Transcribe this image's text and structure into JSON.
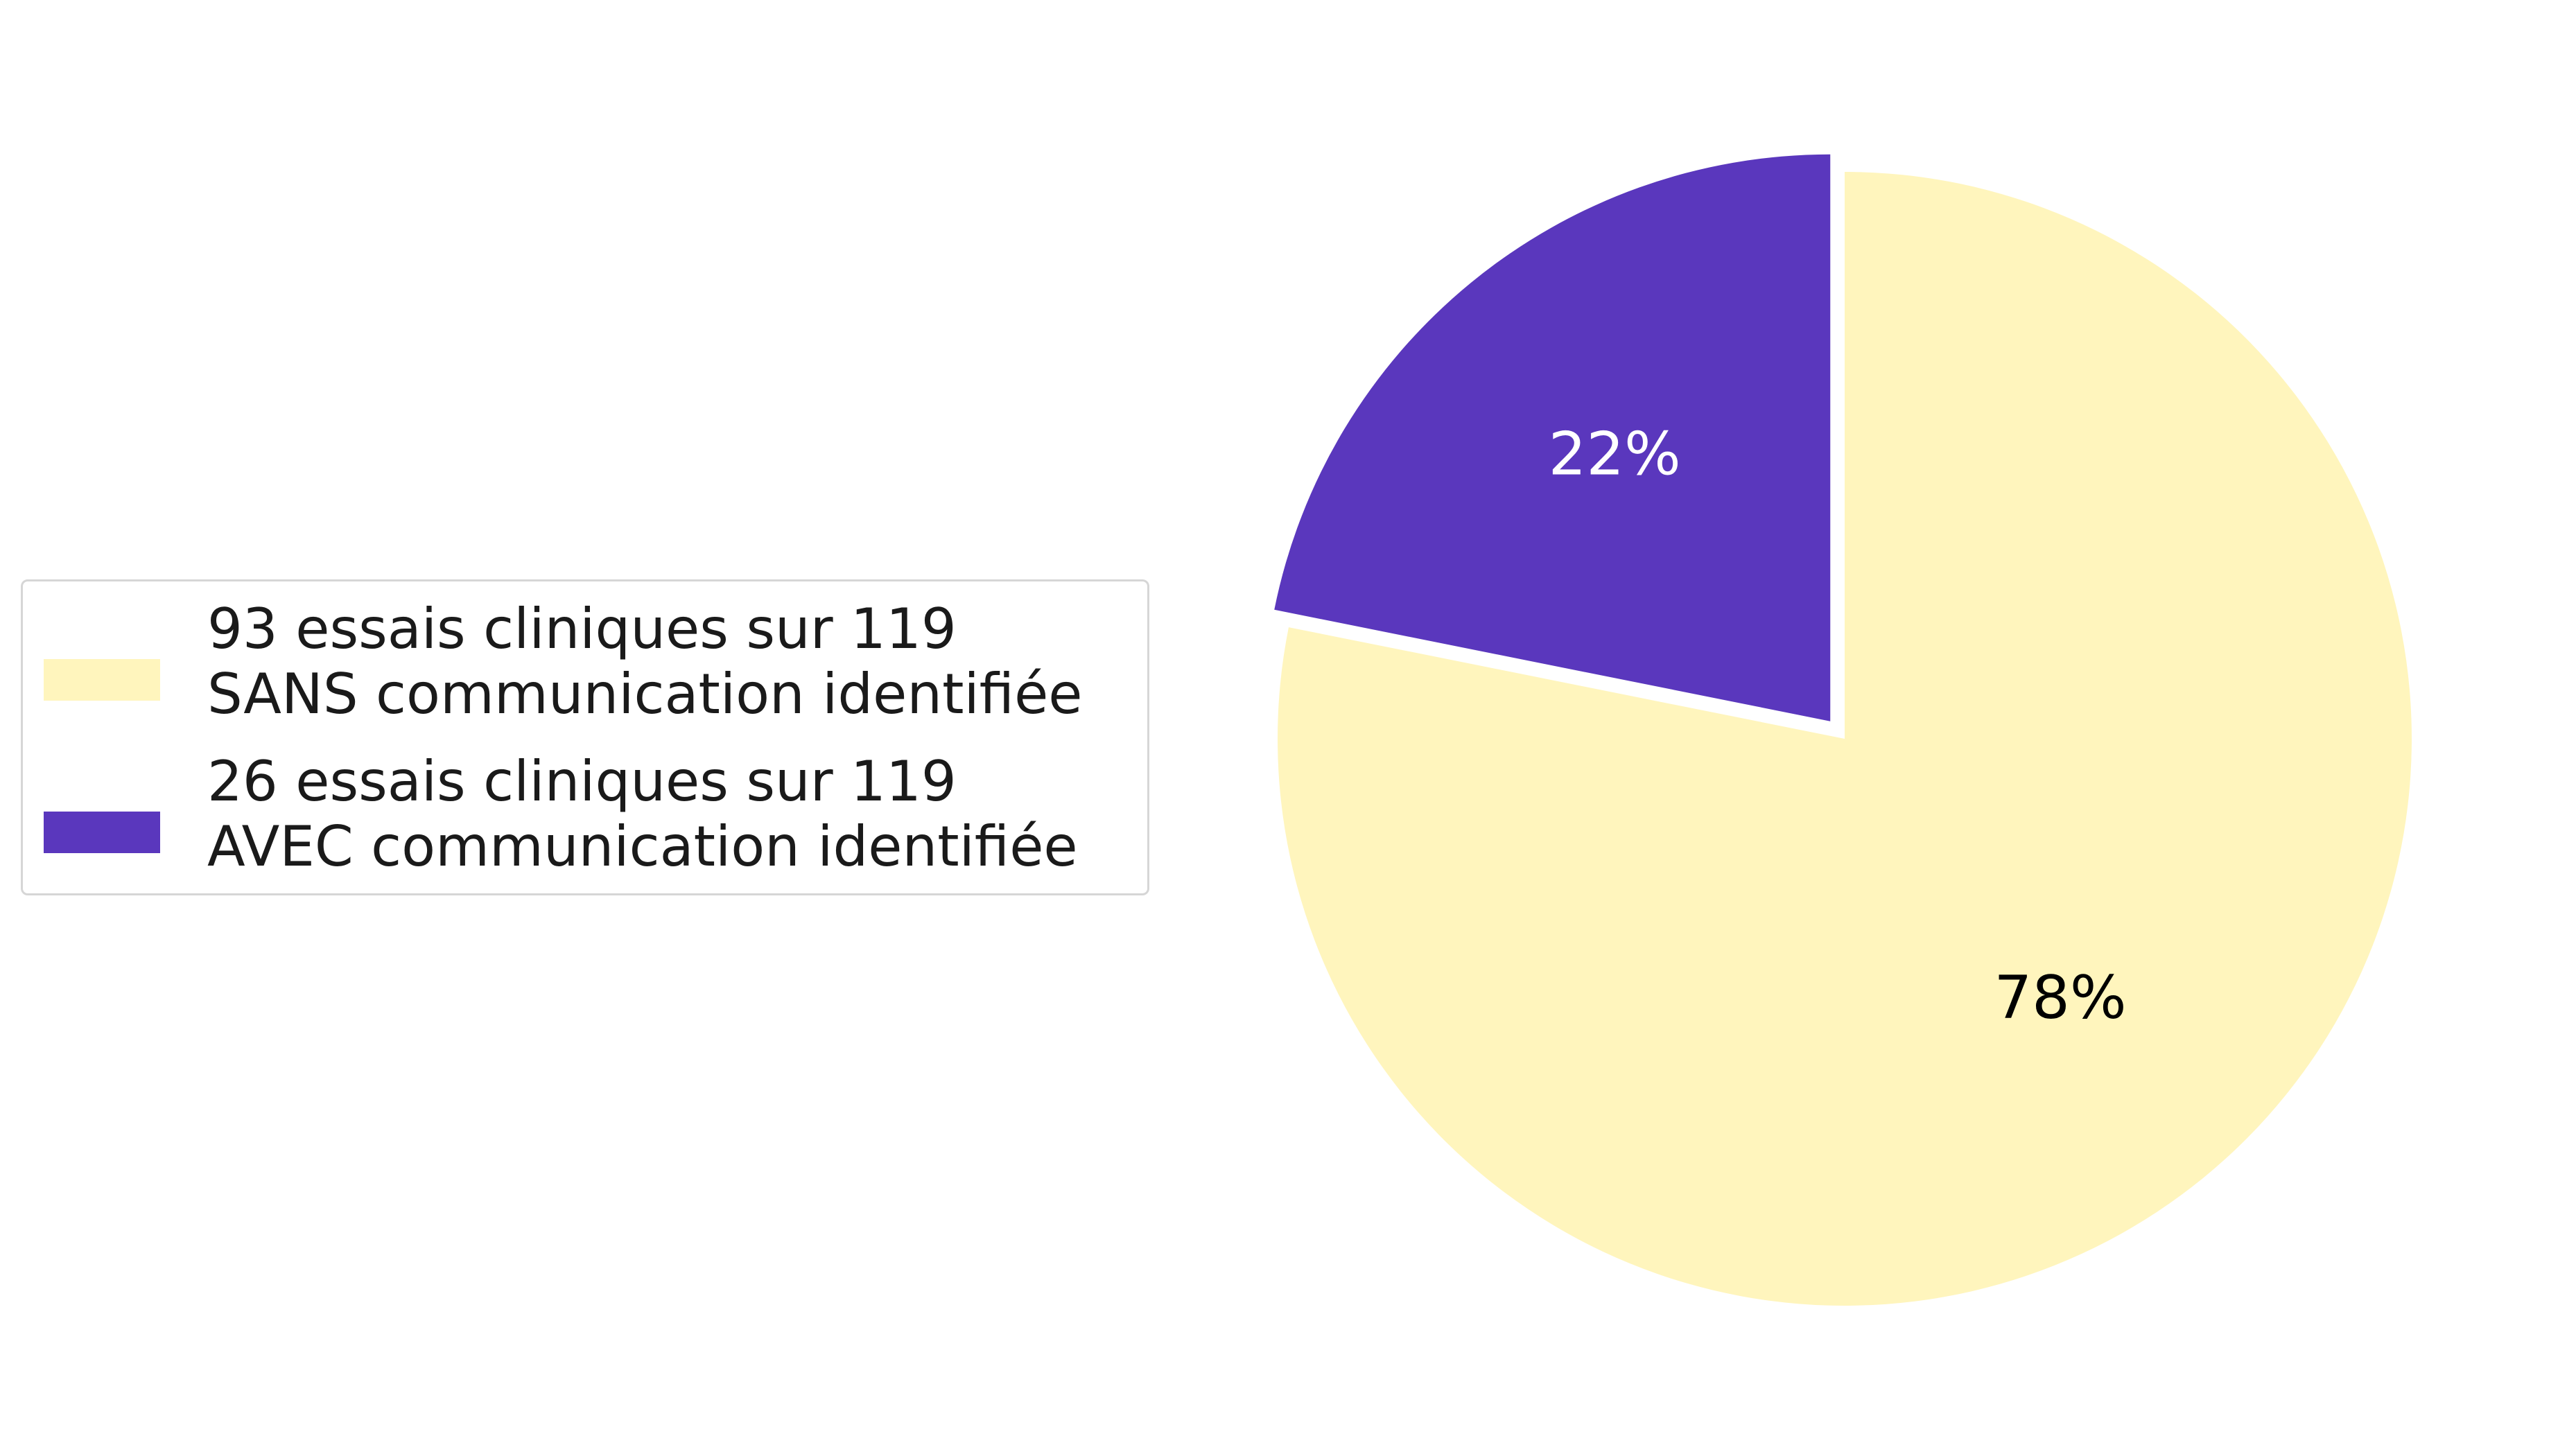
{
  "chart_data": {
    "type": "pie",
    "title": "",
    "start_angle_deg": 90,
    "direction": "clockwise",
    "explode": [
      0,
      0.04
    ],
    "legend_position": "left",
    "slices": [
      {
        "label": "93 essais cliniques sur 119\nSANS communication identifiée",
        "value": 93,
        "pct_label": "78%",
        "color": "#fff5bd",
        "pct_color": "#000000"
      },
      {
        "label": "26 essais cliniques sur 119\nAVEC communication identifiée",
        "value": 26,
        "pct_label": "22%",
        "color": "#5a37bd",
        "pct_color": "#ffffff"
      }
    ]
  }
}
